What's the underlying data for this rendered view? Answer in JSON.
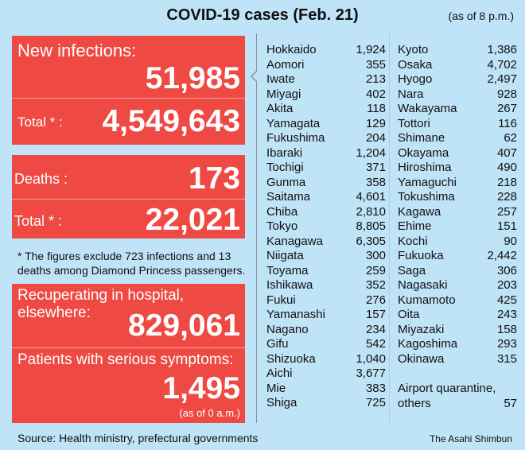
{
  "header": {
    "title": "COVID-19 cases (Feb. 21)",
    "as_of": "(as of 8 p.m.)"
  },
  "infections": {
    "label": "New infections:",
    "value": "51,985",
    "total_label": "Total * :",
    "total": "4,549,643"
  },
  "deaths": {
    "label": "Deaths :",
    "value": "173",
    "total_label": "Total * :",
    "total": "22,021"
  },
  "note": "* The figures exclude 723 infections and 13 deaths among Diamond Princess passengers.",
  "recuperating": {
    "label": "Recuperating in hospital, elsewhere:",
    "value": "829,061"
  },
  "serious": {
    "label": "Patients with serious symptoms:",
    "value": "1,495",
    "as_of": "(as of 0 a.m.)"
  },
  "prefectures_left": [
    [
      "Hokkaido",
      "1,924"
    ],
    [
      "Aomori",
      "355"
    ],
    [
      "Iwate",
      "213"
    ],
    [
      "Miyagi",
      "402"
    ],
    [
      "Akita",
      "118"
    ],
    [
      "Yamagata",
      "129"
    ],
    [
      "Fukushima",
      "204"
    ],
    [
      "Ibaraki",
      "1,204"
    ],
    [
      "Tochigi",
      "371"
    ],
    [
      "Gunma",
      "358"
    ],
    [
      "Saitama",
      "4,601"
    ],
    [
      "Chiba",
      "2,810"
    ],
    [
      "Tokyo",
      "8,805"
    ],
    [
      "Kanagawa",
      "6,305"
    ],
    [
      "Niigata",
      "300"
    ],
    [
      "Toyama",
      "259"
    ],
    [
      "Ishikawa",
      "352"
    ],
    [
      "Fukui",
      "276"
    ],
    [
      "Yamanashi",
      "157"
    ],
    [
      "Nagano",
      "234"
    ],
    [
      "Gifu",
      "542"
    ],
    [
      "Shizuoka",
      "1,040"
    ],
    [
      "Aichi",
      "3,677"
    ],
    [
      "Mie",
      "383"
    ],
    [
      "Shiga",
      "725"
    ]
  ],
  "prefectures_right": [
    [
      "Kyoto",
      "1,386"
    ],
    [
      "Osaka",
      "4,702"
    ],
    [
      "Hyogo",
      "2,497"
    ],
    [
      "Nara",
      "928"
    ],
    [
      "Wakayama",
      "267"
    ],
    [
      "Tottori",
      "116"
    ],
    [
      "Shimane",
      "62"
    ],
    [
      "Okayama",
      "407"
    ],
    [
      "Hiroshima",
      "490"
    ],
    [
      "Yamaguchi",
      "218"
    ],
    [
      "Tokushima",
      "228"
    ],
    [
      "Kagawa",
      "257"
    ],
    [
      "Ehime",
      "151"
    ],
    [
      "Kochi",
      "90"
    ],
    [
      "Fukuoka",
      "2,442"
    ],
    [
      "Saga",
      "306"
    ],
    [
      "Nagasaki",
      "203"
    ],
    [
      "Kumamoto",
      "425"
    ],
    [
      "Oita",
      "243"
    ],
    [
      "Miyazaki",
      "158"
    ],
    [
      "Kagoshima",
      "293"
    ],
    [
      "Okinawa",
      "315"
    ]
  ],
  "airport": {
    "label_line1": "Airport quarantine,",
    "label_line2": "others",
    "value": "57"
  },
  "footer": {
    "source": "Source: Health ministry, prefectural governments",
    "credit": "The Asahi Shimbun"
  },
  "colors": {
    "background": "#bfe3f7",
    "panel_red": "#ef4944"
  }
}
